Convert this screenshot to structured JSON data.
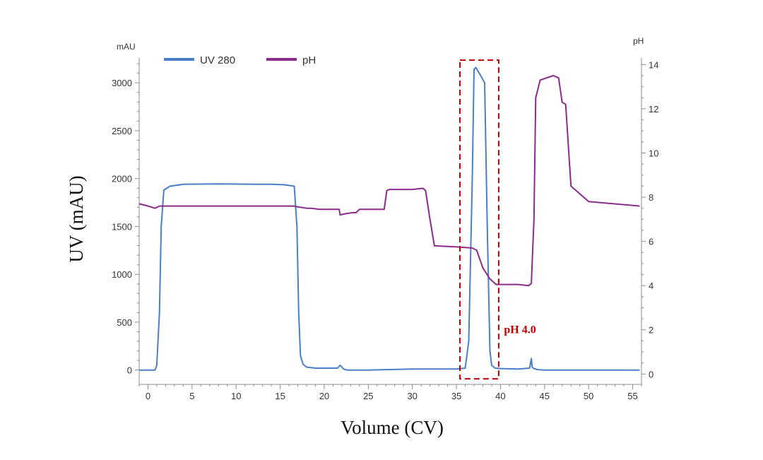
{
  "chart_data": {
    "type": "line",
    "xlabel": "Volume (CV)",
    "ylabel": "UV (mAU)",
    "y_unit_label": "mAU",
    "y2_unit_label": "pH",
    "xlim": [
      -1,
      56
    ],
    "ylim": [
      -150,
      3260
    ],
    "y2lim": [
      -0.47,
      14.3
    ],
    "x_ticks": [
      0,
      5,
      10,
      15,
      20,
      25,
      30,
      35,
      40,
      45,
      50,
      55
    ],
    "y_ticks": [
      0,
      500,
      1000,
      1500,
      2000,
      2500,
      3000
    ],
    "y2_ticks": [
      0,
      2,
      4,
      6,
      8,
      10,
      12,
      14
    ],
    "x_minor_step": 1,
    "y_minor_step": 100,
    "y2_minor_step": 0.5,
    "series": [
      {
        "name": "UV 280",
        "axis": "left",
        "color": "#4a7ec5",
        "x": [
          -1,
          0.8,
          1.0,
          1.3,
          1.5,
          1.8,
          2.5,
          4,
          8,
          12,
          14,
          15.5,
          16.6,
          16.9,
          17.1,
          17.3,
          17.6,
          18,
          19,
          21.5,
          21.8,
          22.2,
          22.6,
          25,
          30,
          35,
          36,
          36.4,
          36.8,
          37.0,
          37.2,
          37.6,
          38.2,
          38.5,
          38.8,
          39.0,
          39.4,
          40,
          42,
          43.3,
          43.5,
          43.6,
          43.8,
          44.2,
          45,
          50,
          55.8
        ],
        "values": [
          0,
          0,
          50,
          600,
          1500,
          1880,
          1920,
          1940,
          1945,
          1940,
          1940,
          1935,
          1920,
          1500,
          600,
          150,
          60,
          30,
          20,
          20,
          50,
          10,
          0,
          0,
          10,
          10,
          20,
          300,
          2000,
          3140,
          3160,
          3100,
          3000,
          1500,
          200,
          50,
          20,
          15,
          10,
          20,
          120,
          30,
          15,
          5,
          0,
          0,
          0
        ]
      },
      {
        "name": "pH",
        "axis": "right",
        "color": "#8b2b8b",
        "x": [
          -1,
          0,
          0.8,
          1.3,
          2,
          5,
          10,
          15,
          16.5,
          17.2,
          18,
          18.5,
          19.5,
          21.7,
          21.8,
          22.4,
          23.2,
          23.6,
          24.0,
          24.3,
          26.8,
          27.1,
          27.4,
          30,
          31.2,
          31.5,
          32.0,
          32.5,
          35,
          36.8,
          37.3,
          38,
          38.8,
          39.5,
          42,
          43.2,
          43.5,
          43.8,
          44.0,
          44.5,
          46,
          46.6,
          47,
          47.4,
          48,
          50,
          55.8
        ],
        "values": [
          7.7,
          7.6,
          7.5,
          7.6,
          7.6,
          7.6,
          7.6,
          7.6,
          7.6,
          7.55,
          7.5,
          7.5,
          7.45,
          7.45,
          7.2,
          7.25,
          7.3,
          7.3,
          7.45,
          7.45,
          7.45,
          8.3,
          8.35,
          8.35,
          8.4,
          8.3,
          7.0,
          5.8,
          5.75,
          5.7,
          5.6,
          4.8,
          4.3,
          4.05,
          4.05,
          4.0,
          4.1,
          7.0,
          12.5,
          13.3,
          13.5,
          13.4,
          12.3,
          12.2,
          8.5,
          7.8,
          7.6
        ]
      }
    ],
    "legend": [
      "UV 280",
      "pH"
    ],
    "legend_position": "top-left",
    "annotations": [
      {
        "type": "dashed-box",
        "x_range": [
          35.4,
          39.8
        ],
        "y2_range": [
          -0.22,
          14.2
        ],
        "color": "#c00000"
      },
      {
        "type": "text",
        "text": "pH 4.0",
        "x": 40.4,
        "y2": 1.85,
        "color": "#c00000"
      }
    ]
  }
}
